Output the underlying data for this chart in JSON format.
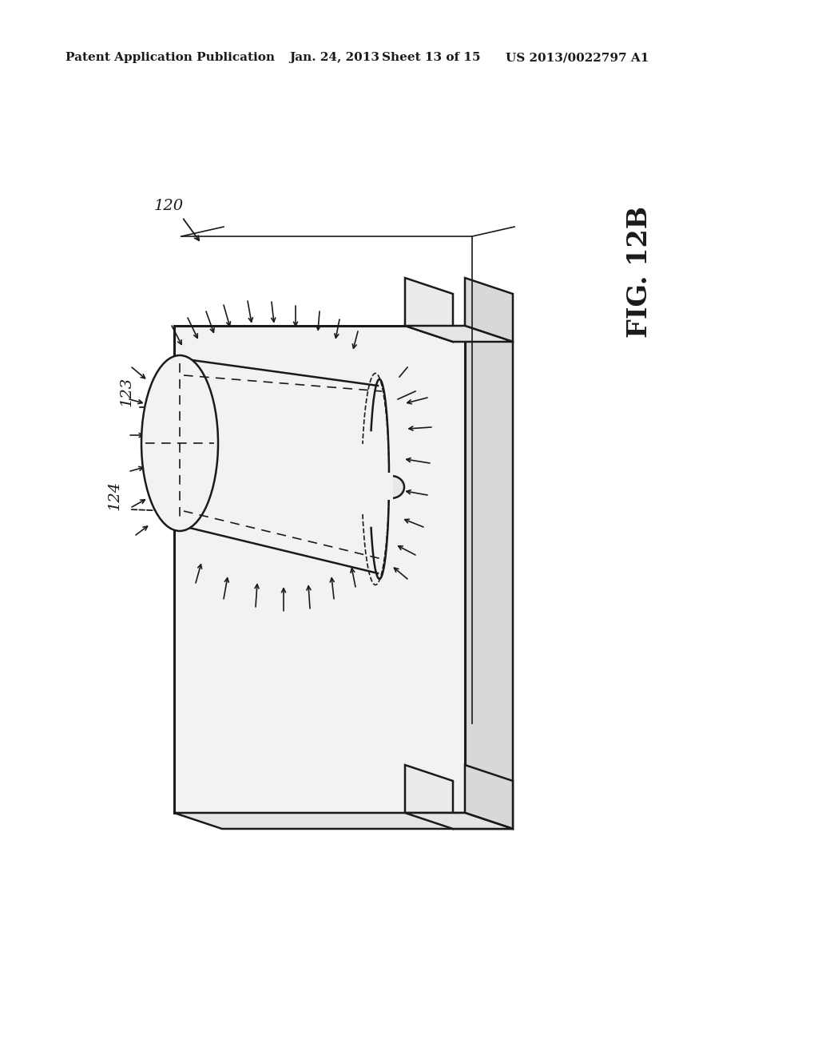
{
  "bg_color": "#ffffff",
  "line_color": "#1a1a1a",
  "header_text": "Patent Application Publication",
  "header_date": "Jan. 24, 2013",
  "header_sheet": "Sheet 13 of 15",
  "header_patent": "US 2013/0022797 A1",
  "fig_label": "FIG. 12B",
  "label_120": "120",
  "label_123": "123",
  "label_124": "124",
  "header_fontsize": 11,
  "label_fontsize": 13,
  "fig_label_fontsize": 24
}
